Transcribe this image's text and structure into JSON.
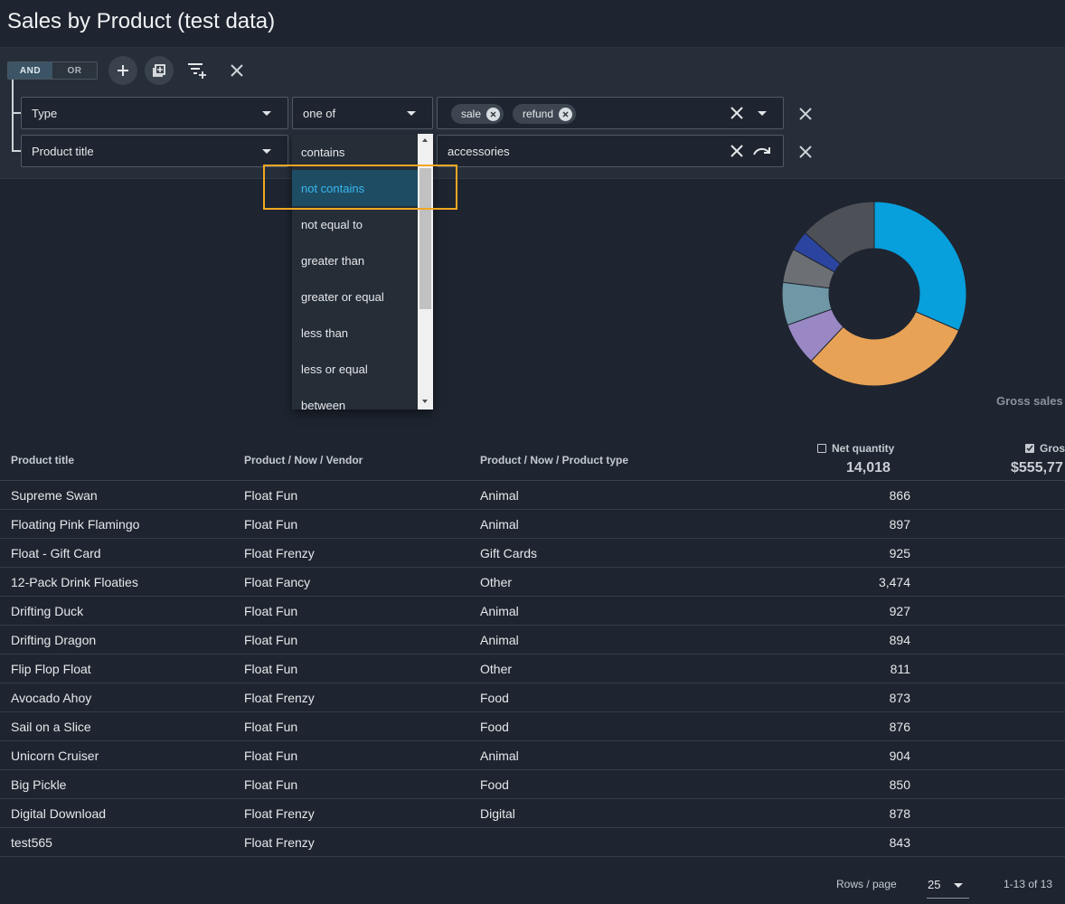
{
  "page": {
    "title": "Sales by Product (test data)"
  },
  "filter": {
    "logic": {
      "and_label": "AND",
      "or_label": "OR",
      "selected": "AND"
    },
    "rows": [
      {
        "field": "Type",
        "operator": "one of",
        "chips": [
          "sale",
          "refund"
        ]
      },
      {
        "field": "Product title",
        "operator": "contains",
        "value": "accessories"
      }
    ],
    "operator_options": [
      "contains",
      "not contains",
      "not equal to",
      "greater than",
      "greater or equal",
      "less than",
      "less or equal",
      "between"
    ],
    "highlighted_option": "not contains"
  },
  "chart": {
    "caption": "Gross sales",
    "colors": [
      "#079fdc",
      "#e8a256",
      "#9a88c4",
      "#6f97a6",
      "#6c7074",
      "#2b44a0",
      "#4d5057"
    ]
  },
  "chart_data": {
    "type": "pie",
    "values": [
      0.315,
      0.305,
      0.075,
      0.075,
      0.06,
      0.035,
      0.135
    ],
    "value_unit": "fraction"
  },
  "table": {
    "headers": {
      "product_title": "Product title",
      "vendor": "Product / Now / Vendor",
      "product_type": "Product / Now / Product type",
      "net_quantity": "Net quantity",
      "gross": "Gros"
    },
    "totals": {
      "net_quantity": "14,018",
      "gross": "$555,77"
    },
    "rows": [
      {
        "title": "Supreme Swan",
        "vendor": "Float Fun",
        "type": "Animal",
        "qty": "866"
      },
      {
        "title": "Floating Pink Flamingo",
        "vendor": "Float Fun",
        "type": "Animal",
        "qty": "897"
      },
      {
        "title": "Float - Gift Card",
        "vendor": "Float Frenzy",
        "type": "Gift Cards",
        "qty": "925"
      },
      {
        "title": "12-Pack Drink Floaties",
        "vendor": "Float Fancy",
        "type": "Other",
        "qty": "3,474"
      },
      {
        "title": "Drifting Duck",
        "vendor": "Float Fun",
        "type": "Animal",
        "qty": "927"
      },
      {
        "title": "Drifting Dragon",
        "vendor": "Float Fun",
        "type": "Animal",
        "qty": "894"
      },
      {
        "title": "Flip Flop Float",
        "vendor": "Float Fun",
        "type": "Other",
        "qty": "811"
      },
      {
        "title": "Avocado Ahoy",
        "vendor": "Float Frenzy",
        "type": "Food",
        "qty": "873"
      },
      {
        "title": "Sail on a Slice",
        "vendor": "Float Fun",
        "type": "Food",
        "qty": "876"
      },
      {
        "title": "Unicorn Cruiser",
        "vendor": "Float Fun",
        "type": "Animal",
        "qty": "904"
      },
      {
        "title": "Big Pickle",
        "vendor": "Float Fun",
        "type": "Food",
        "qty": "850"
      },
      {
        "title": "Digital Download",
        "vendor": "Float Frenzy",
        "type": "Digital",
        "qty": "878"
      },
      {
        "title": "test565",
        "vendor": "Float Frenzy",
        "type": "",
        "qty": "843"
      }
    ]
  },
  "pagination": {
    "rows_label": "Rows / page",
    "rows_per_page": "25",
    "range": "1-13 of 13"
  }
}
